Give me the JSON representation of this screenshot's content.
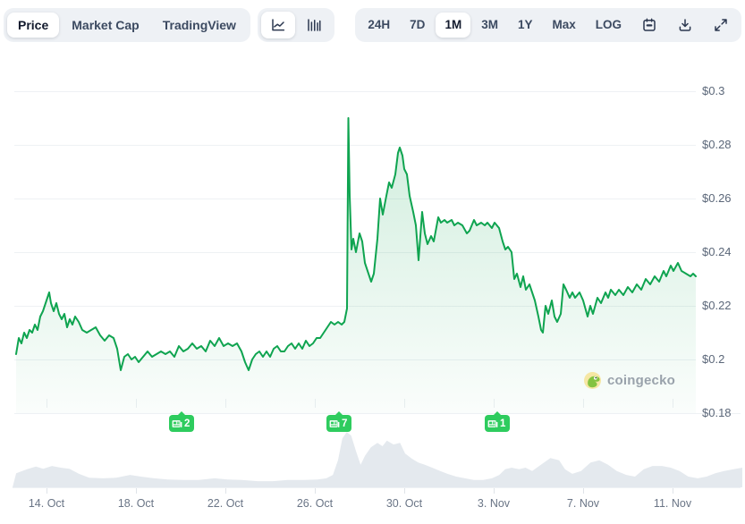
{
  "toolbar": {
    "metric_tabs": [
      {
        "label": "Price",
        "selected": true
      },
      {
        "label": "Market Cap",
        "selected": false
      },
      {
        "label": "TradingView",
        "selected": false
      }
    ],
    "chart_type_toggle": [
      {
        "icon": "line-chart-icon",
        "selected": true
      },
      {
        "icon": "candlestick-chart-icon",
        "selected": false
      }
    ],
    "range_tabs": [
      {
        "label": "24H",
        "selected": false
      },
      {
        "label": "7D",
        "selected": false
      },
      {
        "label": "1M",
        "selected": true
      },
      {
        "label": "3M",
        "selected": false
      },
      {
        "label": "1Y",
        "selected": false
      },
      {
        "label": "Max",
        "selected": false
      },
      {
        "label": "LOG",
        "selected": false
      }
    ],
    "action_icons": [
      "calendar-icon",
      "download-icon",
      "expand-icon"
    ]
  },
  "watermark": {
    "text": "coingecko"
  },
  "chart_data": {
    "type": "line",
    "currency": "USD",
    "grid": "horizontal",
    "legend": "none",
    "y_axis": {
      "side": "right",
      "ticks": [
        "$0.3",
        "$0.28",
        "$0.26",
        "$0.24",
        "$0.22",
        "$0.2",
        "$0.18"
      ],
      "values": [
        0.3,
        0.28,
        0.26,
        0.24,
        0.22,
        0.2,
        0.18
      ],
      "range": [
        0.18,
        0.314
      ]
    },
    "x_axis": {
      "ticks": [
        "14. Oct",
        "18. Oct",
        "22. Oct",
        "26. Oct",
        "30. Oct",
        "3. Nov",
        "7. Nov",
        "11. Nov"
      ],
      "day_values": [
        14,
        18,
        22,
        26,
        30,
        34,
        38,
        42
      ],
      "x_unit": "day index: Oct 14 = 14 ... Oct 31 = 31, Nov 1 = 32, Nov 11 = 42",
      "range": [
        12.6,
        43.1
      ]
    },
    "news_annotations": [
      {
        "count": "2",
        "date": "Oct 20"
      },
      {
        "count": "7",
        "date": "Oct 27"
      },
      {
        "count": "1",
        "date": "Nov 3"
      }
    ],
    "price_series": {
      "name": "Price",
      "color": "#0fa450",
      "points": [
        [
          12.64,
          0.202
        ],
        [
          12.76,
          0.208
        ],
        [
          12.88,
          0.206
        ],
        [
          13.0,
          0.21
        ],
        [
          13.12,
          0.208
        ],
        [
          13.24,
          0.211
        ],
        [
          13.36,
          0.21
        ],
        [
          13.48,
          0.213
        ],
        [
          13.6,
          0.211
        ],
        [
          13.72,
          0.216
        ],
        [
          13.84,
          0.218
        ],
        [
          13.96,
          0.221
        ],
        [
          14.12,
          0.225
        ],
        [
          14.2,
          0.221
        ],
        [
          14.32,
          0.218
        ],
        [
          14.44,
          0.221
        ],
        [
          14.56,
          0.217
        ],
        [
          14.68,
          0.215
        ],
        [
          14.8,
          0.217
        ],
        [
          14.92,
          0.212
        ],
        [
          15.04,
          0.215
        ],
        [
          15.16,
          0.213
        ],
        [
          15.28,
          0.216
        ],
        [
          15.44,
          0.214
        ],
        [
          15.6,
          0.211
        ],
        [
          15.8,
          0.21
        ],
        [
          16.0,
          0.211
        ],
        [
          16.2,
          0.212
        ],
        [
          16.4,
          0.209
        ],
        [
          16.6,
          0.207
        ],
        [
          16.8,
          0.209
        ],
        [
          17.0,
          0.208
        ],
        [
          17.16,
          0.204
        ],
        [
          17.32,
          0.196
        ],
        [
          17.48,
          0.201
        ],
        [
          17.64,
          0.202
        ],
        [
          17.8,
          0.2
        ],
        [
          17.96,
          0.201
        ],
        [
          18.12,
          0.199
        ],
        [
          18.32,
          0.201
        ],
        [
          18.52,
          0.203
        ],
        [
          18.72,
          0.201
        ],
        [
          18.92,
          0.202
        ],
        [
          19.12,
          0.203
        ],
        [
          19.32,
          0.202
        ],
        [
          19.52,
          0.203
        ],
        [
          19.72,
          0.201
        ],
        [
          19.92,
          0.205
        ],
        [
          20.12,
          0.203
        ],
        [
          20.32,
          0.204
        ],
        [
          20.52,
          0.206
        ],
        [
          20.72,
          0.204
        ],
        [
          20.92,
          0.205
        ],
        [
          21.12,
          0.203
        ],
        [
          21.32,
          0.207
        ],
        [
          21.52,
          0.205
        ],
        [
          21.72,
          0.208
        ],
        [
          21.92,
          0.205
        ],
        [
          22.12,
          0.206
        ],
        [
          22.32,
          0.205
        ],
        [
          22.52,
          0.206
        ],
        [
          22.72,
          0.203
        ],
        [
          22.88,
          0.199
        ],
        [
          23.04,
          0.196
        ],
        [
          23.2,
          0.2
        ],
        [
          23.36,
          0.202
        ],
        [
          23.52,
          0.203
        ],
        [
          23.68,
          0.201
        ],
        [
          23.84,
          0.203
        ],
        [
          24.0,
          0.201
        ],
        [
          24.16,
          0.204
        ],
        [
          24.32,
          0.205
        ],
        [
          24.48,
          0.203
        ],
        [
          24.64,
          0.203
        ],
        [
          24.8,
          0.205
        ],
        [
          24.96,
          0.206
        ],
        [
          25.12,
          0.204
        ],
        [
          25.28,
          0.206
        ],
        [
          25.44,
          0.204
        ],
        [
          25.6,
          0.207
        ],
        [
          25.76,
          0.205
        ],
        [
          25.92,
          0.206
        ],
        [
          26.08,
          0.208
        ],
        [
          26.24,
          0.208
        ],
        [
          26.4,
          0.21
        ],
        [
          26.56,
          0.212
        ],
        [
          26.72,
          0.214
        ],
        [
          26.88,
          0.213
        ],
        [
          27.04,
          0.214
        ],
        [
          27.2,
          0.213
        ],
        [
          27.32,
          0.214
        ],
        [
          27.44,
          0.219
        ],
        [
          27.5,
          0.29
        ],
        [
          27.56,
          0.261
        ],
        [
          27.64,
          0.241
        ],
        [
          27.72,
          0.245
        ],
        [
          27.84,
          0.24
        ],
        [
          28.0,
          0.247
        ],
        [
          28.12,
          0.244
        ],
        [
          28.24,
          0.236
        ],
        [
          28.4,
          0.232
        ],
        [
          28.52,
          0.229
        ],
        [
          28.64,
          0.232
        ],
        [
          28.8,
          0.245
        ],
        [
          28.92,
          0.26
        ],
        [
          29.04,
          0.254
        ],
        [
          29.2,
          0.261
        ],
        [
          29.32,
          0.266
        ],
        [
          29.44,
          0.264
        ],
        [
          29.6,
          0.269
        ],
        [
          29.72,
          0.277
        ],
        [
          29.8,
          0.279
        ],
        [
          29.92,
          0.276
        ],
        [
          30.0,
          0.271
        ],
        [
          30.12,
          0.269
        ],
        [
          30.24,
          0.261
        ],
        [
          30.4,
          0.255
        ],
        [
          30.52,
          0.25
        ],
        [
          30.64,
          0.237
        ],
        [
          30.8,
          0.255
        ],
        [
          30.92,
          0.247
        ],
        [
          31.04,
          0.243
        ],
        [
          31.2,
          0.246
        ],
        [
          31.32,
          0.244
        ],
        [
          31.52,
          0.253
        ],
        [
          31.64,
          0.251
        ],
        [
          31.8,
          0.252
        ],
        [
          31.92,
          0.251
        ],
        [
          32.12,
          0.252
        ],
        [
          32.24,
          0.25
        ],
        [
          32.4,
          0.251
        ],
        [
          32.6,
          0.25
        ],
        [
          32.8,
          0.247
        ],
        [
          32.92,
          0.248
        ],
        [
          33.12,
          0.252
        ],
        [
          33.24,
          0.25
        ],
        [
          33.44,
          0.251
        ],
        [
          33.6,
          0.25
        ],
        [
          33.72,
          0.251
        ],
        [
          33.92,
          0.249
        ],
        [
          34.04,
          0.251
        ],
        [
          34.24,
          0.249
        ],
        [
          34.4,
          0.244
        ],
        [
          34.52,
          0.241
        ],
        [
          34.64,
          0.242
        ],
        [
          34.8,
          0.24
        ],
        [
          34.92,
          0.23
        ],
        [
          35.04,
          0.232
        ],
        [
          35.2,
          0.227
        ],
        [
          35.32,
          0.231
        ],
        [
          35.44,
          0.226
        ],
        [
          35.6,
          0.228
        ],
        [
          35.72,
          0.225
        ],
        [
          35.84,
          0.222
        ],
        [
          36.0,
          0.216
        ],
        [
          36.12,
          0.211
        ],
        [
          36.2,
          0.21
        ],
        [
          36.32,
          0.22
        ],
        [
          36.44,
          0.217
        ],
        [
          36.6,
          0.222
        ],
        [
          36.72,
          0.216
        ],
        [
          36.84,
          0.214
        ],
        [
          37.0,
          0.217
        ],
        [
          37.12,
          0.228
        ],
        [
          37.24,
          0.226
        ],
        [
          37.4,
          0.223
        ],
        [
          37.52,
          0.225
        ],
        [
          37.64,
          0.223
        ],
        [
          37.84,
          0.225
        ],
        [
          38.0,
          0.222
        ],
        [
          38.2,
          0.216
        ],
        [
          38.32,
          0.22
        ],
        [
          38.44,
          0.217
        ],
        [
          38.64,
          0.223
        ],
        [
          38.8,
          0.221
        ],
        [
          39.0,
          0.225
        ],
        [
          39.12,
          0.223
        ],
        [
          39.24,
          0.226
        ],
        [
          39.44,
          0.224
        ],
        [
          39.6,
          0.226
        ],
        [
          39.8,
          0.224
        ],
        [
          40.0,
          0.227
        ],
        [
          40.2,
          0.225
        ],
        [
          40.4,
          0.228
        ],
        [
          40.6,
          0.226
        ],
        [
          40.8,
          0.23
        ],
        [
          41.0,
          0.228
        ],
        [
          41.2,
          0.231
        ],
        [
          41.4,
          0.229
        ],
        [
          41.6,
          0.233
        ],
        [
          41.72,
          0.231
        ],
        [
          41.92,
          0.235
        ],
        [
          42.04,
          0.233
        ],
        [
          42.24,
          0.236
        ],
        [
          42.4,
          0.233
        ],
        [
          42.6,
          0.232
        ],
        [
          42.8,
          0.231
        ],
        [
          42.92,
          0.232
        ],
        [
          43.04,
          0.231
        ]
      ]
    },
    "volume_series": {
      "name": "Volume",
      "color": "#e4e9ee",
      "scale": "normalized 0-1 (no axis labels shown)",
      "points": [
        [
          0.005,
          0.25
        ],
        [
          0.02,
          0.32
        ],
        [
          0.032,
          0.37
        ],
        [
          0.042,
          0.33
        ],
        [
          0.054,
          0.38
        ],
        [
          0.066,
          0.35
        ],
        [
          0.078,
          0.33
        ],
        [
          0.091,
          0.24
        ],
        [
          0.105,
          0.17
        ],
        [
          0.124,
          0.16
        ],
        [
          0.142,
          0.17
        ],
        [
          0.161,
          0.22
        ],
        [
          0.176,
          0.19
        ],
        [
          0.194,
          0.16
        ],
        [
          0.213,
          0.14
        ],
        [
          0.234,
          0.13
        ],
        [
          0.255,
          0.13
        ],
        [
          0.277,
          0.16
        ],
        [
          0.295,
          0.14
        ],
        [
          0.314,
          0.13
        ],
        [
          0.336,
          0.11
        ],
        [
          0.357,
          0.11
        ],
        [
          0.377,
          0.13
        ],
        [
          0.4,
          0.13
        ],
        [
          0.418,
          0.14
        ],
        [
          0.43,
          0.16
        ],
        [
          0.439,
          0.22
        ],
        [
          0.446,
          0.48
        ],
        [
          0.452,
          0.87
        ],
        [
          0.458,
          0.98
        ],
        [
          0.464,
          0.92
        ],
        [
          0.471,
          0.63
        ],
        [
          0.477,
          0.4
        ],
        [
          0.483,
          0.56
        ],
        [
          0.491,
          0.71
        ],
        [
          0.5,
          0.79
        ],
        [
          0.507,
          0.73
        ],
        [
          0.513,
          0.83
        ],
        [
          0.522,
          0.76
        ],
        [
          0.531,
          0.79
        ],
        [
          0.538,
          0.6
        ],
        [
          0.547,
          0.51
        ],
        [
          0.556,
          0.44
        ],
        [
          0.565,
          0.4
        ],
        [
          0.575,
          0.35
        ],
        [
          0.586,
          0.29
        ],
        [
          0.596,
          0.24
        ],
        [
          0.608,
          0.19
        ],
        [
          0.62,
          0.16
        ],
        [
          0.632,
          0.13
        ],
        [
          0.645,
          0.13
        ],
        [
          0.657,
          0.16
        ],
        [
          0.667,
          0.22
        ],
        [
          0.675,
          0.32
        ],
        [
          0.684,
          0.35
        ],
        [
          0.694,
          0.32
        ],
        [
          0.703,
          0.35
        ],
        [
          0.712,
          0.29
        ],
        [
          0.724,
          0.4
        ],
        [
          0.737,
          0.52
        ],
        [
          0.749,
          0.48
        ],
        [
          0.757,
          0.32
        ],
        [
          0.767,
          0.24
        ],
        [
          0.779,
          0.29
        ],
        [
          0.792,
          0.44
        ],
        [
          0.804,
          0.48
        ],
        [
          0.816,
          0.4
        ],
        [
          0.828,
          0.29
        ],
        [
          0.841,
          0.22
        ],
        [
          0.853,
          0.19
        ],
        [
          0.865,
          0.32
        ],
        [
          0.877,
          0.38
        ],
        [
          0.89,
          0.38
        ],
        [
          0.902,
          0.35
        ],
        [
          0.914,
          0.29
        ],
        [
          0.926,
          0.19
        ],
        [
          0.939,
          0.16
        ],
        [
          0.951,
          0.19
        ],
        [
          0.963,
          0.25
        ],
        [
          0.975,
          0.29
        ],
        [
          0.988,
          0.32
        ],
        [
          1.0,
          0.35
        ]
      ]
    }
  }
}
